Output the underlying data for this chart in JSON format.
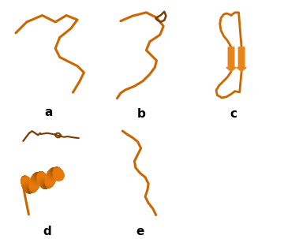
{
  "background_color": "#ffffff",
  "label_fontsize": 11,
  "label_fontweight": "bold",
  "labels": [
    "a",
    "b",
    "c",
    "d",
    "e"
  ],
  "orange_light": "#E8851A",
  "orange_dark": "#7A3A00",
  "orange_mid": "#CC6600",
  "fig_width": 3.6,
  "fig_height": 3.03,
  "dpi": 100
}
